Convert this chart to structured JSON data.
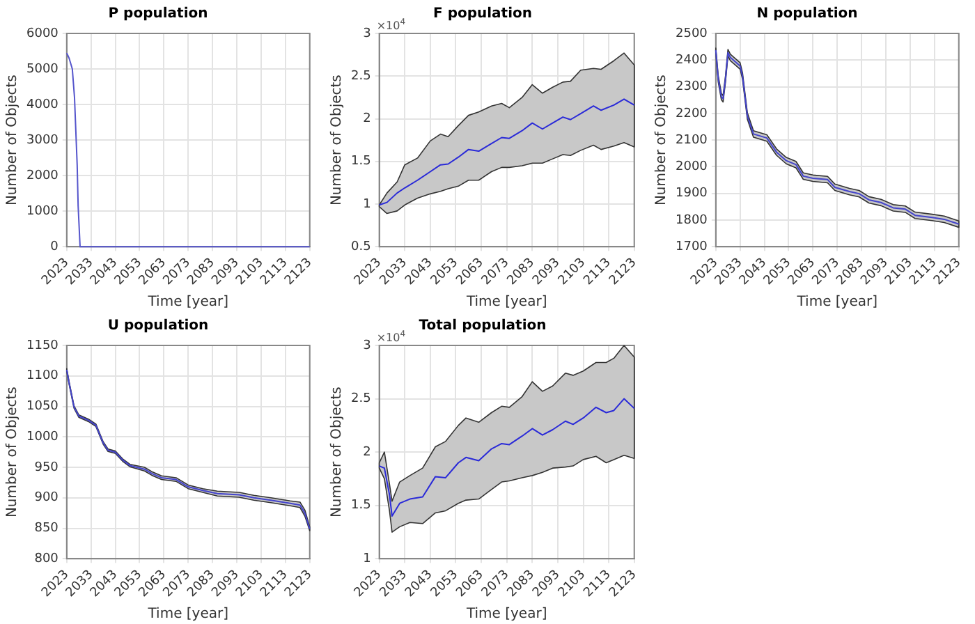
{
  "chart_data": [
    {
      "type": "line",
      "title": "P population",
      "xlabel": "Time [year]",
      "ylabel": "Number of Objects",
      "grid": true,
      "xlim": [
        2023,
        2123
      ],
      "xticks": [
        2023,
        2033,
        2043,
        2053,
        2063,
        2073,
        2083,
        2093,
        2103,
        2113,
        2123
      ],
      "ylim": [
        0,
        6000
      ],
      "yticks": [
        0,
        1000,
        2000,
        3000,
        4000,
        5000,
        6000
      ],
      "series": [
        {
          "color": "#5555cc",
          "x": [
            2023,
            2024,
            2025.3,
            2026.2,
            2027.3,
            2027.7,
            2028.5,
            2040,
            2060,
            2080,
            2100,
            2123
          ],
          "values": [
            5450,
            5300,
            5000,
            4200,
            2300,
            1150,
            0,
            0,
            0,
            0,
            0,
            0
          ]
        }
      ]
    },
    {
      "type": "line",
      "title": "F population",
      "xlabel": "Time [year]",
      "ylabel": "Number of Objects",
      "grid": true,
      "annotations": [
        "×10$^{4}$"
      ],
      "xlim": [
        2023,
        2123
      ],
      "xticks": [
        2023,
        2033,
        2043,
        2053,
        2063,
        2073,
        2083,
        2093,
        2103,
        2113,
        2123
      ],
      "ylim": [
        0.5,
        3
      ],
      "yticks": [
        0.5,
        1,
        1.5,
        2,
        2.5,
        3
      ],
      "series": [
        {
          "color": "#2a2ad8",
          "x": [
            2023,
            2026,
            2030,
            2033,
            2038,
            2043,
            2047,
            2050,
            2054,
            2058,
            2062,
            2067,
            2071,
            2074,
            2079,
            2083,
            2087,
            2091,
            2095,
            2098,
            2102,
            2107,
            2110,
            2115,
            2119,
            2123
          ],
          "values": [
            0.99,
            1.02,
            1.13,
            1.19,
            1.28,
            1.38,
            1.46,
            1.47,
            1.55,
            1.64,
            1.62,
            1.71,
            1.78,
            1.77,
            1.86,
            1.95,
            1.88,
            1.95,
            2.02,
            1.99,
            2.06,
            2.15,
            2.1,
            2.16,
            2.23,
            2.16
          ],
          "upper": [
            0.99,
            1.13,
            1.26,
            1.46,
            1.54,
            1.74,
            1.82,
            1.79,
            1.92,
            2.04,
            2.08,
            2.15,
            2.18,
            2.13,
            2.25,
            2.4,
            2.3,
            2.37,
            2.43,
            2.44,
            2.57,
            2.59,
            2.58,
            2.68,
            2.77,
            2.63
          ],
          "lower": [
            0.97,
            0.89,
            0.92,
            0.99,
            1.07,
            1.12,
            1.15,
            1.18,
            1.21,
            1.28,
            1.28,
            1.38,
            1.43,
            1.43,
            1.45,
            1.48,
            1.48,
            1.53,
            1.58,
            1.57,
            1.63,
            1.69,
            1.64,
            1.68,
            1.72,
            1.67
          ]
        }
      ]
    },
    {
      "type": "line",
      "title": "N population",
      "xlabel": "Time [year]",
      "ylabel": "Number of Objects",
      "grid": true,
      "xlim": [
        2023,
        2123
      ],
      "xticks": [
        2023,
        2033,
        2043,
        2053,
        2063,
        2073,
        2083,
        2093,
        2103,
        2113,
        2123
      ],
      "ylim": [
        1700,
        2500
      ],
      "yticks": [
        1700,
        1800,
        1900,
        2000,
        2100,
        2200,
        2300,
        2400,
        2500
      ],
      "series": [
        {
          "color": "#4444cc",
          "x": [
            2023,
            2024,
            2025.3,
            2026,
            2027,
            2028,
            2029,
            2033,
            2034,
            2036,
            2038.5,
            2044,
            2048,
            2052,
            2056,
            2059,
            2063,
            2069,
            2072,
            2078,
            2082,
            2086,
            2091,
            2096,
            2101,
            2105,
            2112,
            2117,
            2123
          ],
          "values": [
            2437,
            2330,
            2263,
            2255,
            2330,
            2428,
            2410,
            2378,
            2340,
            2190,
            2123,
            2108,
            2055,
            2023,
            2008,
            1965,
            1957,
            1952,
            1923,
            1907,
            1899,
            1876,
            1866,
            1846,
            1841,
            1818,
            1810,
            1803,
            1785
          ],
          "upper": [
            2445,
            2342,
            2275,
            2267,
            2342,
            2440,
            2422,
            2390,
            2352,
            2202,
            2135,
            2120,
            2067,
            2035,
            2020,
            1977,
            1969,
            1964,
            1935,
            1919,
            1911,
            1888,
            1878,
            1858,
            1853,
            1830,
            1822,
            1815,
            1797
          ],
          "lower": [
            2429,
            2318,
            2251,
            2243,
            2318,
            2416,
            2398,
            2366,
            2328,
            2178,
            2111,
            2096,
            2043,
            2011,
            1996,
            1953,
            1945,
            1940,
            1911,
            1895,
            1887,
            1864,
            1854,
            1834,
            1829,
            1806,
            1798,
            1791,
            1773
          ]
        }
      ]
    },
    {
      "type": "line",
      "title": "U population",
      "xlabel": "Time [year]",
      "ylabel": "Number of Objects",
      "grid": true,
      "xlim": [
        2023,
        2123
      ],
      "xticks": [
        2023,
        2033,
        2043,
        2053,
        2063,
        2073,
        2083,
        2093,
        2103,
        2113,
        2123
      ],
      "ylim": [
        800,
        1150
      ],
      "yticks": [
        800,
        850,
        900,
        950,
        1000,
        1050,
        1100,
        1150
      ],
      "series": [
        {
          "color": "#4444cc",
          "x": [
            2023,
            2024,
            2026,
            2028,
            2032,
            2035,
            2038,
            2040,
            2043,
            2046,
            2049,
            2055,
            2058,
            2062,
            2068,
            2073,
            2079,
            2085,
            2094,
            2100,
            2107,
            2115,
            2119,
            2121,
            2123
          ],
          "values": [
            1110,
            1088,
            1049,
            1034,
            1027,
            1019,
            990,
            978,
            975,
            962,
            953,
            947,
            940,
            933,
            930,
            918,
            912,
            907,
            905,
            900,
            896,
            891,
            888,
            875,
            849
          ],
          "upper": [
            1112,
            1090,
            1051,
            1036,
            1029,
            1021,
            992,
            980,
            977,
            964,
            955,
            950,
            943,
            936,
            933,
            921,
            915,
            911,
            909,
            904,
            900,
            895,
            893,
            880,
            852
          ],
          "lower": [
            1108,
            1086,
            1047,
            1032,
            1025,
            1017,
            988,
            976,
            973,
            960,
            951,
            944,
            937,
            930,
            927,
            915,
            909,
            903,
            901,
            896,
            892,
            887,
            884,
            870,
            846
          ]
        }
      ]
    },
    {
      "type": "line",
      "title": "Total population",
      "xlabel": "Time [year]",
      "ylabel": "Number of Objects",
      "grid": true,
      "annotations": [
        "×10$^{4}$"
      ],
      "xlim": [
        2023,
        2123
      ],
      "xticks": [
        2023,
        2033,
        2043,
        2053,
        2063,
        2073,
        2083,
        2093,
        2103,
        2113,
        2123
      ],
      "ylim": [
        1,
        3
      ],
      "yticks": [
        1,
        1.5,
        2,
        2.5,
        3
      ],
      "series": [
        {
          "color": "#2a2ad8",
          "x": [
            2023,
            2025,
            2027,
            2028,
            2031,
            2035,
            2040,
            2045,
            2049,
            2054,
            2057,
            2062,
            2067,
            2071,
            2074,
            2079,
            2083,
            2087,
            2091,
            2096,
            2099,
            2103,
            2108,
            2112,
            2115,
            2119,
            2123
          ],
          "values": [
            1.87,
            1.85,
            1.6,
            1.4,
            1.52,
            1.56,
            1.58,
            1.77,
            1.76,
            1.9,
            1.95,
            1.92,
            2.03,
            2.08,
            2.07,
            2.15,
            2.22,
            2.16,
            2.21,
            2.29,
            2.26,
            2.32,
            2.42,
            2.37,
            2.39,
            2.5,
            2.41
          ],
          "upper": [
            1.9,
            2,
            1.7,
            1.54,
            1.72,
            1.78,
            1.85,
            2.05,
            2.1,
            2.25,
            2.32,
            2.28,
            2.37,
            2.43,
            2.42,
            2.52,
            2.66,
            2.57,
            2.62,
            2.74,
            2.72,
            2.76,
            2.84,
            2.84,
            2.88,
            3,
            2.89
          ],
          "lower": [
            1.85,
            1.75,
            1.45,
            1.25,
            1.3,
            1.34,
            1.33,
            1.43,
            1.45,
            1.52,
            1.55,
            1.56,
            1.65,
            1.72,
            1.73,
            1.76,
            1.78,
            1.81,
            1.85,
            1.86,
            1.87,
            1.93,
            1.96,
            1.9,
            1.93,
            1.97,
            1.94
          ]
        }
      ]
    }
  ]
}
